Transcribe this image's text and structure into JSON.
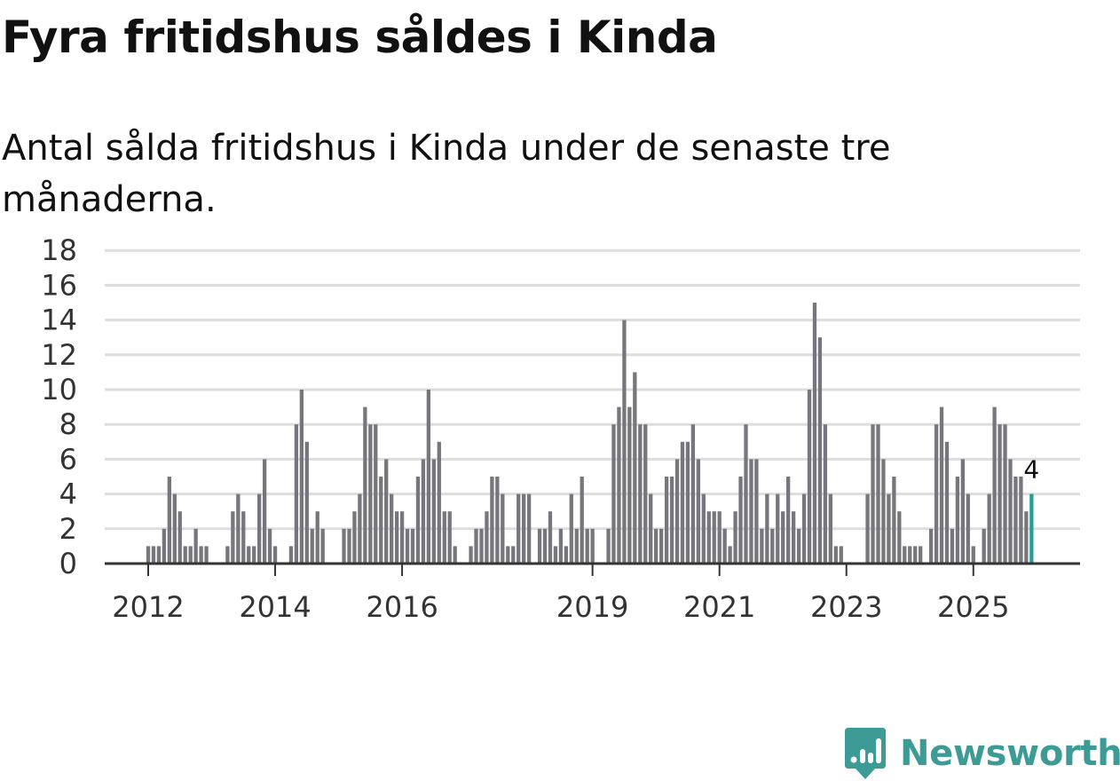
{
  "title": "Fyra fritidshus såldes i Kinda",
  "subtitle": "Antal sålda fritidshus i Kinda under de senaste tre månaderna.",
  "brand": {
    "name": "Newsworthy"
  },
  "colors": {
    "bar": "#77767c",
    "highlight": "#2a9d92",
    "grid": "#dddddd",
    "axis": "#333333",
    "brand": "#3d9b95"
  },
  "chart_data": {
    "type": "bar",
    "title": "Fyra fritidshus såldes i Kinda",
    "subtitle": "Antal sålda fritidshus i Kinda under de senaste tre månaderna.",
    "xlabel": "",
    "ylabel": "",
    "ylim": [
      0,
      18
    ],
    "yticks": [
      0,
      2,
      4,
      6,
      8,
      10,
      12,
      14,
      16,
      18
    ],
    "x_tick_labels": [
      {
        "label": "2012",
        "index": 0
      },
      {
        "label": "2014",
        "index": 24
      },
      {
        "label": "2016",
        "index": 48
      },
      {
        "label": "2019",
        "index": 84
      },
      {
        "label": "2021",
        "index": 108
      },
      {
        "label": "2023",
        "index": 132
      },
      {
        "label": "2025",
        "index": 156
      }
    ],
    "highlight_index": 167,
    "highlight_label": "4",
    "values": [
      1,
      1,
      1,
      2,
      5,
      4,
      3,
      1,
      1,
      2,
      1,
      1,
      0,
      0,
      0,
      1,
      3,
      4,
      3,
      1,
      1,
      4,
      6,
      2,
      1,
      0,
      0,
      1,
      8,
      10,
      7,
      2,
      3,
      2,
      0,
      0,
      0,
      2,
      2,
      3,
      4,
      9,
      8,
      8,
      5,
      6,
      4,
      3,
      3,
      2,
      2,
      5,
      6,
      10,
      6,
      7,
      3,
      3,
      1,
      0,
      0,
      1,
      2,
      2,
      3,
      5,
      5,
      4,
      1,
      1,
      4,
      4,
      4,
      0,
      2,
      2,
      3,
      1,
      2,
      1,
      4,
      2,
      5,
      2,
      2,
      0,
      0,
      2,
      8,
      9,
      14,
      9,
      11,
      8,
      8,
      4,
      2,
      2,
      5,
      5,
      6,
      7,
      7,
      8,
      6,
      4,
      3,
      3,
      3,
      2,
      1,
      3,
      5,
      8,
      6,
      6,
      2,
      4,
      2,
      4,
      3,
      5,
      3,
      2,
      4,
      10,
      15,
      13,
      8,
      4,
      1,
      1,
      0,
      0,
      0,
      0,
      4,
      8,
      8,
      6,
      4,
      5,
      3,
      1,
      1,
      1,
      1,
      0,
      2,
      8,
      9,
      7,
      2,
      5,
      6,
      4,
      1,
      0,
      2,
      4,
      9,
      8,
      8,
      6,
      5,
      5,
      3,
      4
    ]
  }
}
